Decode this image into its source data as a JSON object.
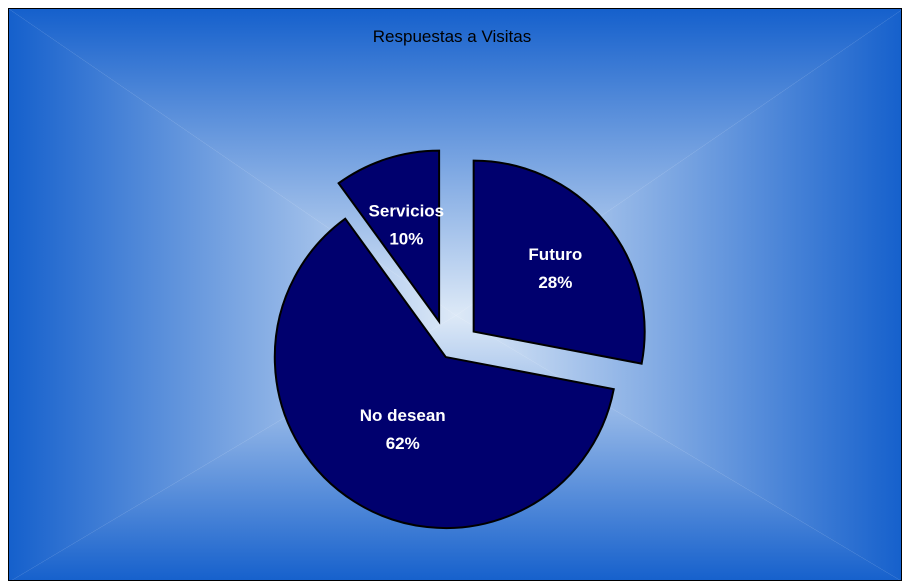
{
  "chart_data": {
    "type": "pie",
    "title": "Respuestas a Visitas",
    "exploded": true,
    "slices": [
      {
        "label": "Futuro",
        "percent_label": "28%",
        "value": 28
      },
      {
        "label": "No desean",
        "percent_label": "62%",
        "value": 62
      },
      {
        "label": "Servicios",
        "percent_label": "10%",
        "value": 10
      }
    ],
    "colors": {
      "slice_fill": "#00006e",
      "slice_stroke": "#000000",
      "label_text": "#ffffff",
      "background_edge": "#1560cc",
      "background_center": "#dde9f7"
    }
  }
}
